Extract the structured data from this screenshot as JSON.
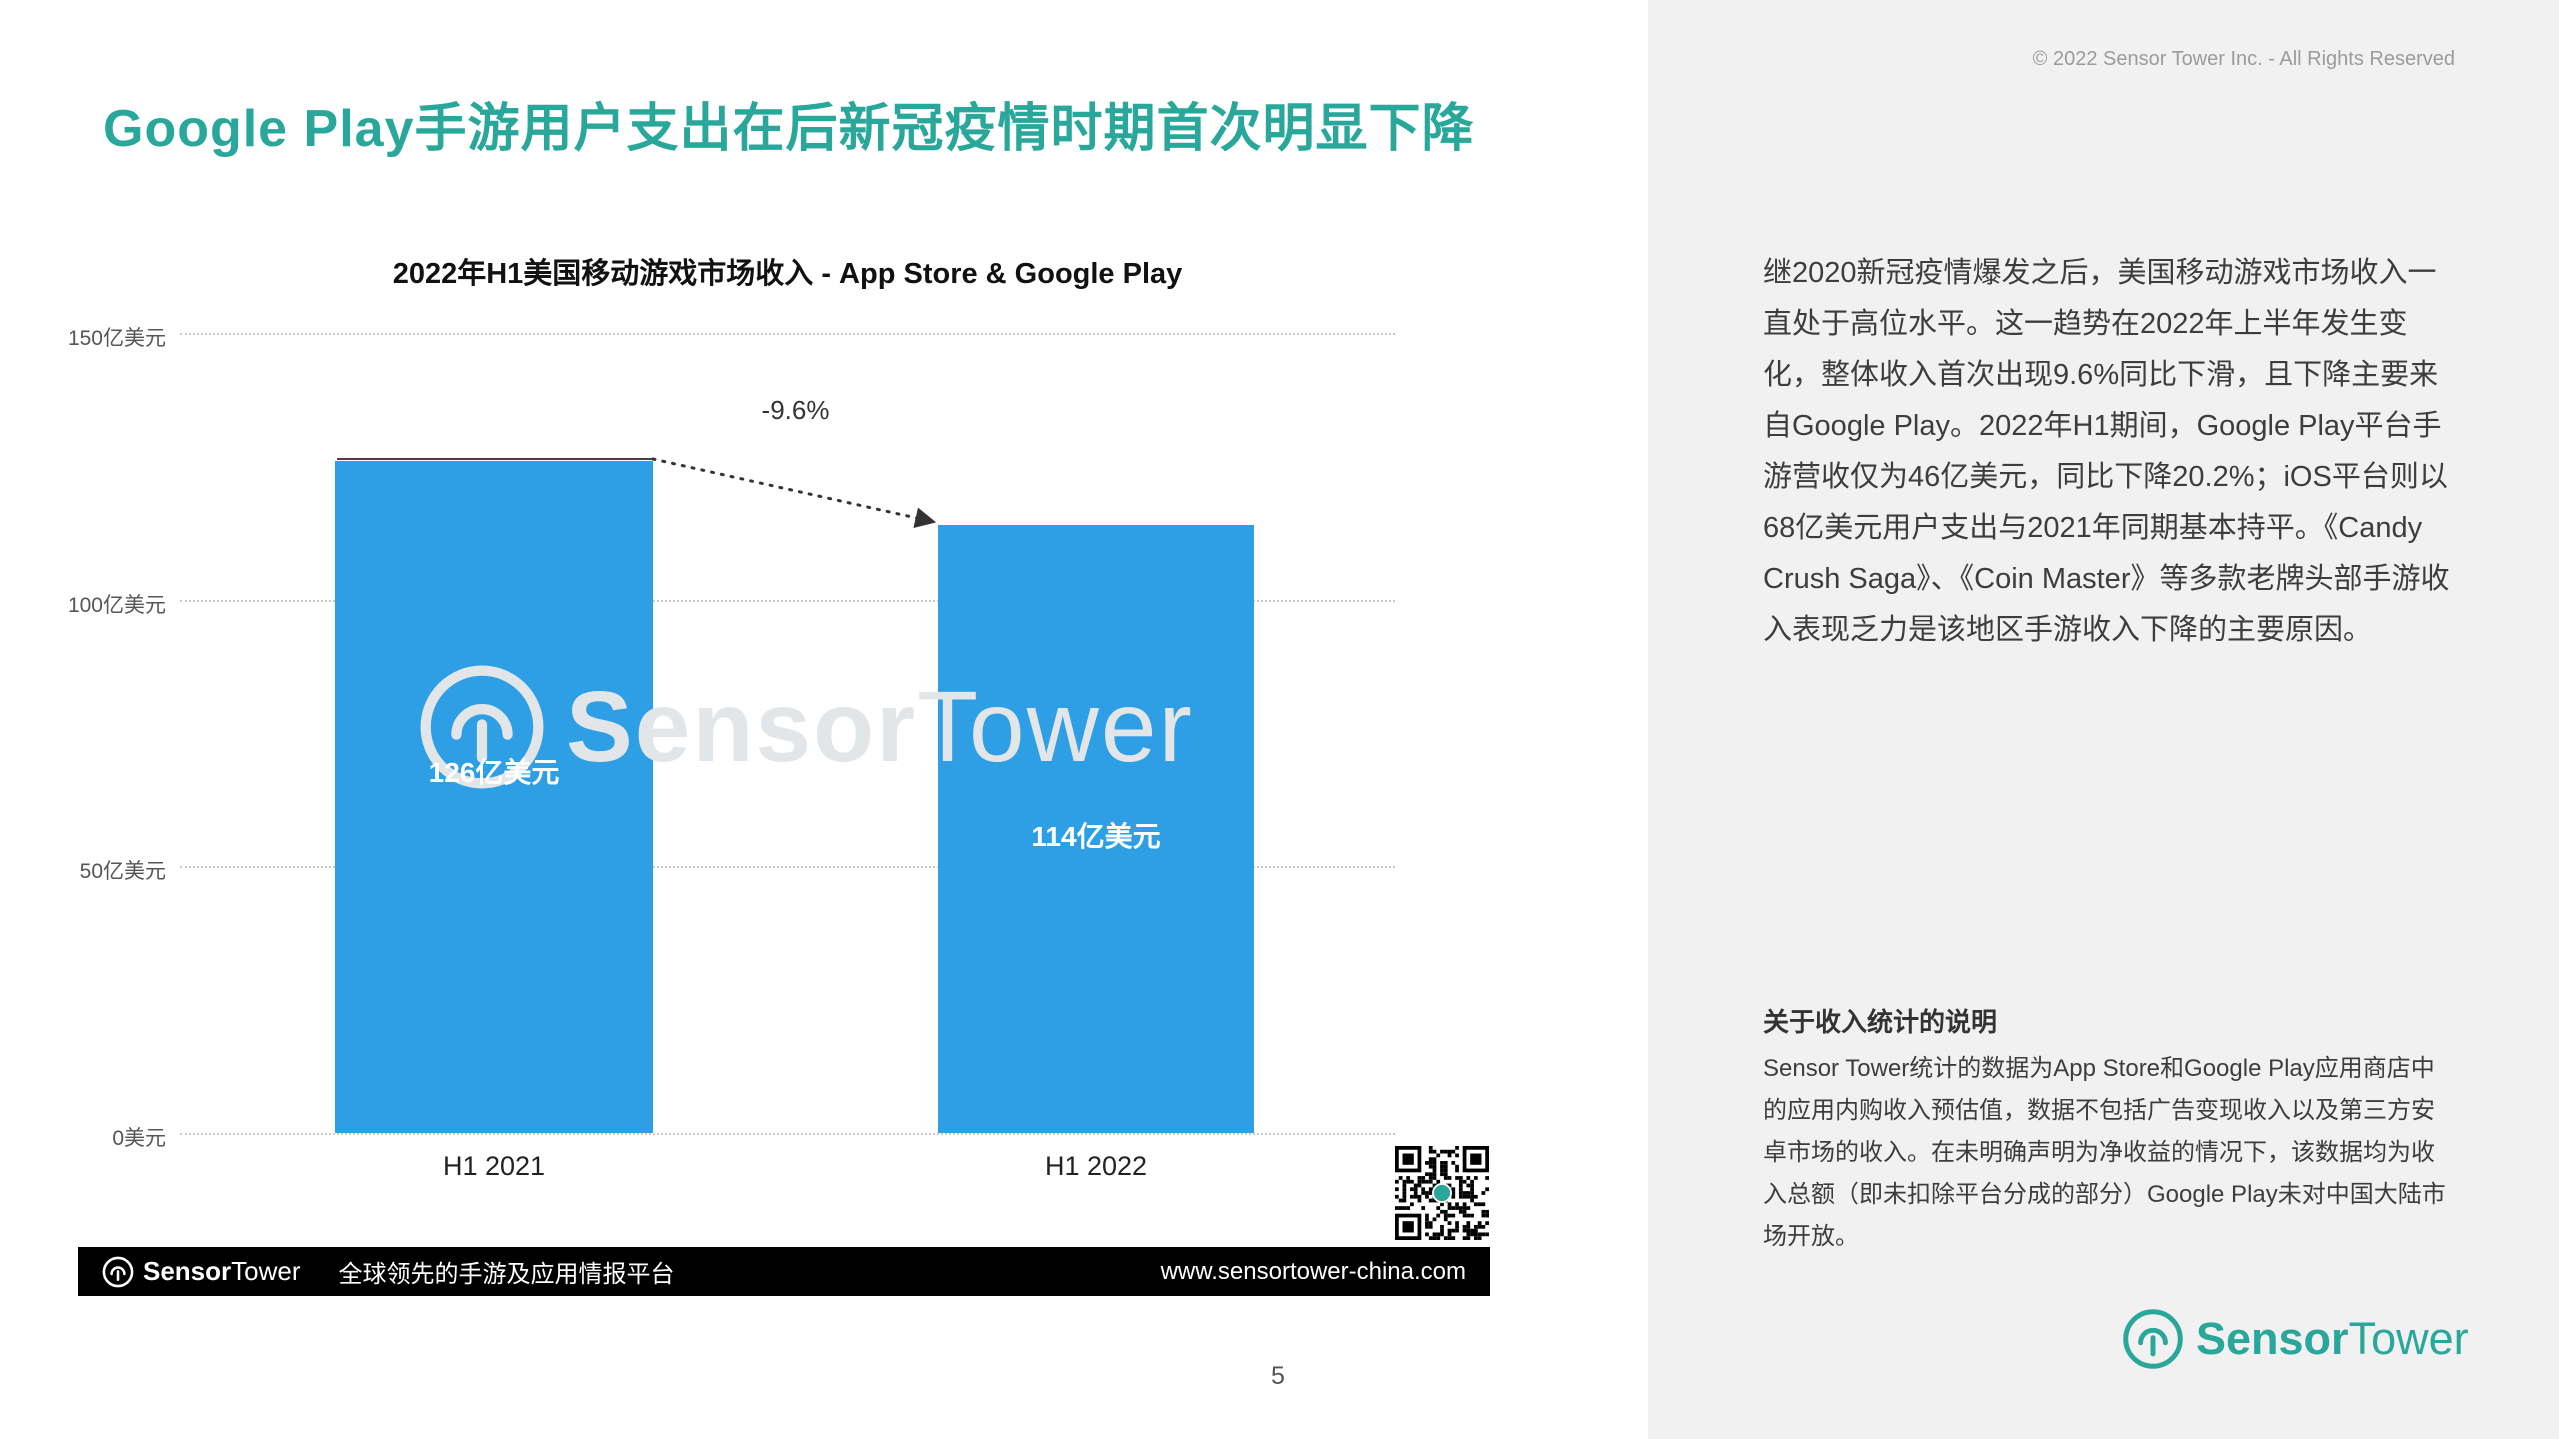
{
  "page": {
    "title": "Google Play手游用户支出在后新冠疫情时期首次明显下降",
    "page_number": "5"
  },
  "chart_data": {
    "type": "bar",
    "title": "2022年H1美国移动游戏市场收入 - App Store & Google Play",
    "categories": [
      "H1 2021",
      "H1 2022"
    ],
    "values": [
      126,
      114
    ],
    "value_labels": [
      "126亿美元",
      "114亿美元"
    ],
    "unit": "亿美元",
    "ylim": [
      0,
      150
    ],
    "yticks": [
      150,
      100,
      50,
      0
    ],
    "ytick_labels": [
      "150亿美元",
      "100亿美元",
      "50亿美元",
      "0美元"
    ],
    "change_annotation": "-9.6%",
    "bar_color": "#2E9FE4",
    "grid": "dotted-horizontal",
    "legend": "none",
    "watermark": {
      "sensor": "Sensor",
      "tower": "Tower"
    }
  },
  "footer": {
    "logo": {
      "sensor": "Sensor",
      "tower": "Tower"
    },
    "tagline": "全球领先的手游及应用情报平台",
    "url": "www.sensortower-china.com"
  },
  "sidebar": {
    "copyright": "© 2022 Sensor Tower Inc. - All Rights Reserved",
    "body_paragraph": "继2020新冠疫情爆发之后，美国移动游戏市场收入一直处于高位水平。这一趋势在2022年上半年发生变化，整体收入首次出现9.6%同比下滑，且下降主要来自Google Play。2022年H1期间，Google Play平台手游营收仅为46亿美元，同比下降20.2%；iOS平台则以68亿美元用户支出与2021年同期基本持平。《Candy Crush Saga》、《Coin Master》等多款老牌头部手游收入表现乏力是该地区手游收入下降的主要原因。",
    "notes_heading": "关于收入统计的说明",
    "notes_paragraph": "Sensor Tower统计的数据为App Store和Google Play应用商店中的应用内购收入预估值，数据不包括广告变现收入以及第三方安卓市场的收入。在未明确声明为净收益的情况下，该数据均为收入总额（即未扣除平台分成的部分）Google Play未对中国大陆市场开放。",
    "logo": {
      "sensor": "Sensor",
      "tower": "Tower"
    }
  },
  "colors": {
    "accent_teal": "#2AA79B",
    "bar_blue": "#2E9FE4",
    "sidebar_bg": "#F1F1F1",
    "footer_bg": "#000000"
  }
}
